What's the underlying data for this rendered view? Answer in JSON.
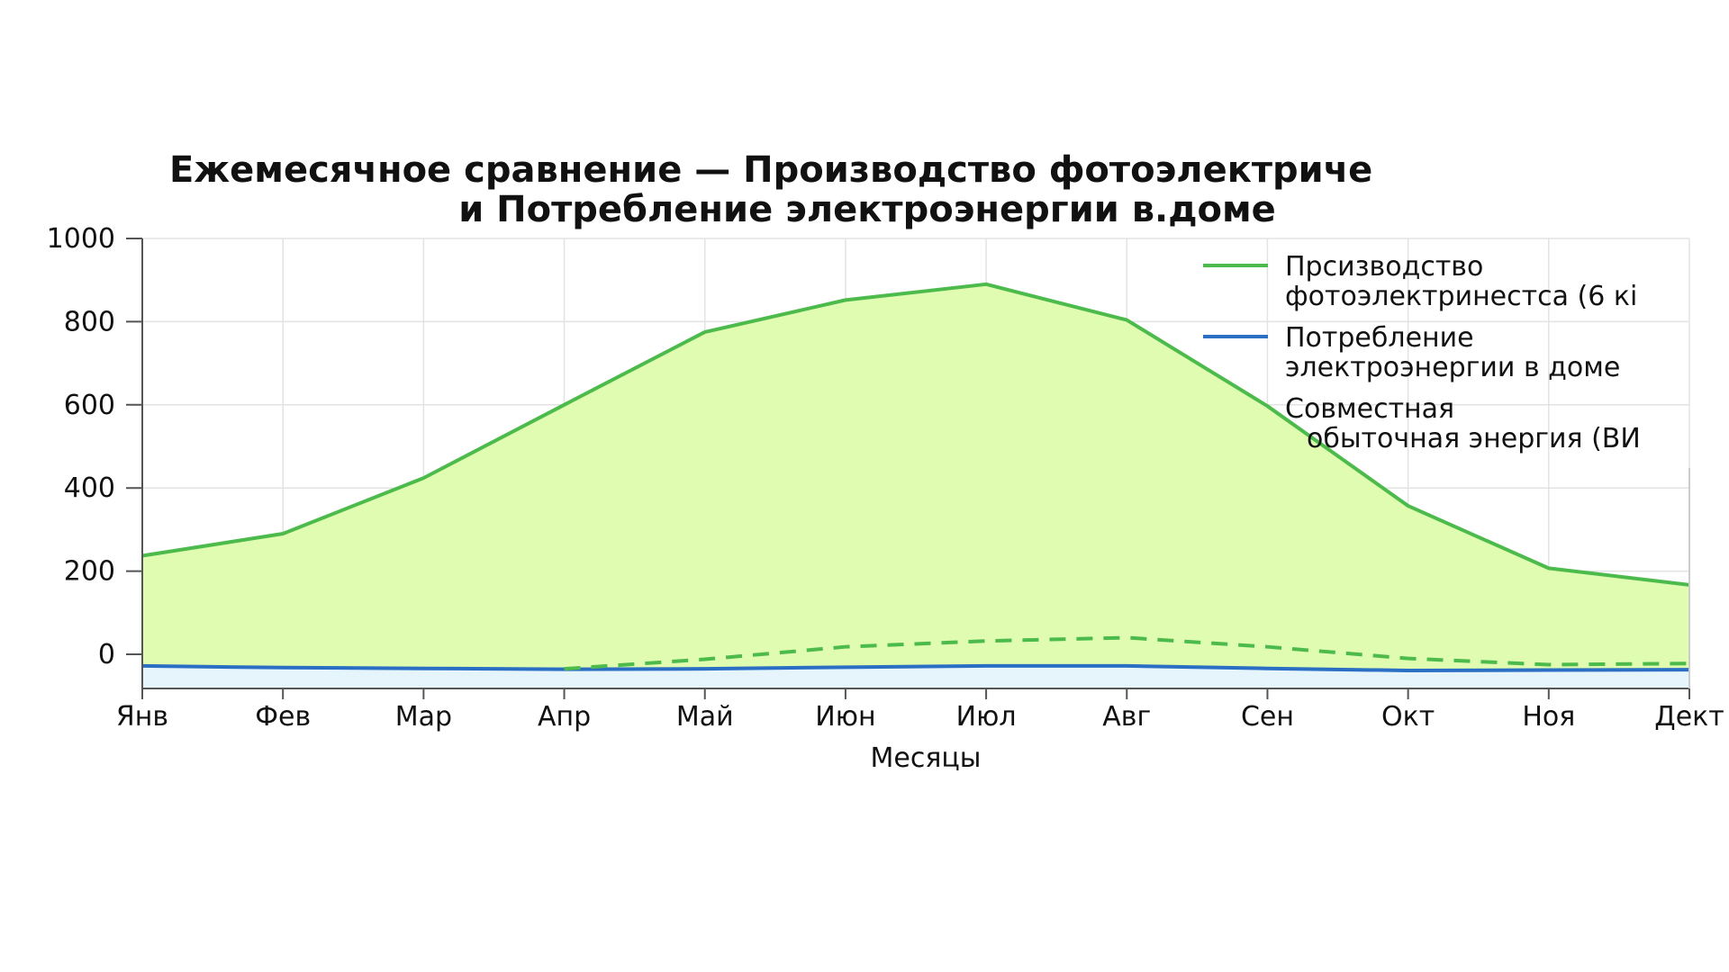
{
  "chart_data": {
    "type": "area",
    "title_lines": [
      "Ежемесячное сравнение — Производство фотоэлектриче",
      "и Потребление электроэнергии в.доме"
    ],
    "xlabel": "Месяцы",
    "ylabel": "",
    "categories": [
      "Янв",
      "Фев",
      "Мар",
      "Апр",
      "Май",
      "Июн",
      "Июл",
      "Авг",
      "Сен",
      "Окт",
      "Ноя",
      "Дект"
    ],
    "ylim": [
      -80,
      1000
    ],
    "yticks": [
      0,
      200,
      400,
      600,
      800,
      1000
    ],
    "grid": true,
    "legend_position": "top-right",
    "series": [
      {
        "name": "Прсизводство фотоэлектринестса (6 кі",
        "legend_lines": [
          "Прсизводство",
          "фотоэлектринестса (6 кі"
        ],
        "values": [
          237,
          290,
          424,
          600,
          775,
          852,
          890,
          804,
          597,
          357,
          207,
          167
        ],
        "color": "#4cbb4c",
        "fill": "#dffcb0",
        "style": "solid"
      },
      {
        "name": "Потребление электроэнергии в доме",
        "legend_lines": [
          "Потребление",
          "электроэнергии в доме"
        ],
        "values": [
          -28,
          -32,
          -34,
          -36,
          -35,
          -31,
          -28,
          -28,
          -34,
          -39,
          -38,
          -37
        ],
        "color": "#2b6fc4",
        "fill": "#e6f4fb",
        "style": "solid"
      },
      {
        "name": "Совместная обыточная энергия (ВИ",
        "legend_lines": [
          "Совместная",
          "обыточная энергия (ВИ"
        ],
        "values": [
          null,
          null,
          null,
          -35,
          -12,
          18,
          32,
          40,
          18,
          -10,
          -25,
          -22
        ],
        "color": "#4cbb4c",
        "style": "dashed"
      }
    ]
  }
}
